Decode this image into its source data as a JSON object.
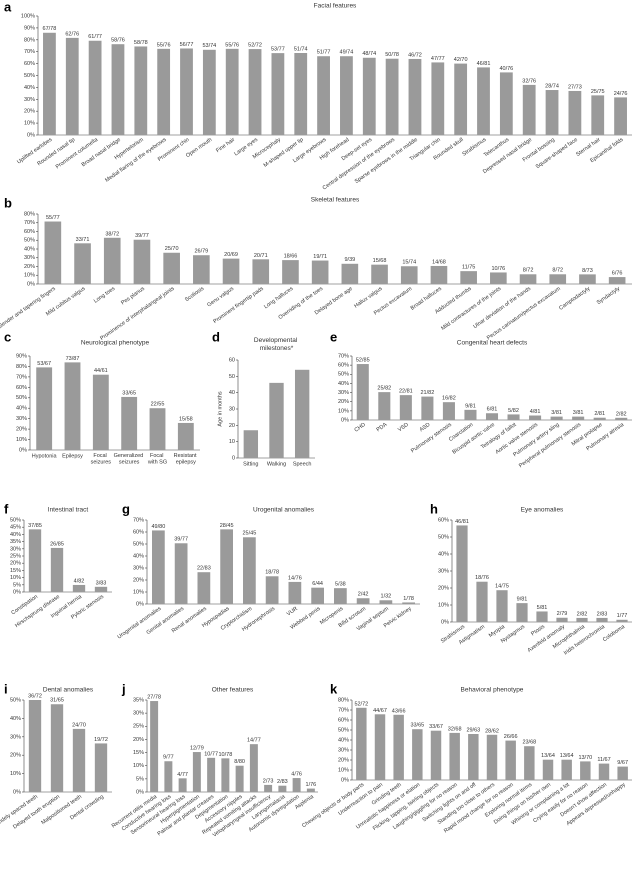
{
  "chart_data": [
    {
      "type": "bar",
      "panel": "a",
      "title": "Facial features",
      "color": "#9a9a9a",
      "categories": [
        "Uplifted earlobes",
        "Rounded nasal tip",
        "Prominent columella",
        "Broad nasal bridge",
        "Hypertelorism",
        "Medial flaring of the eyebrows",
        "Prominent chin",
        "Open mouth",
        "Fine hair",
        "Large eyes",
        "Microcephaly",
        "M-shaped upper lip",
        "Large eyebrows",
        "High forehead",
        "Deep-set eyes",
        "Central depression of the eyebrows",
        "Sparse eyebrows in the middle",
        "Triangular chin",
        "Rounded skull",
        "Strabismus",
        "Telecanthus",
        "Depressed nasal bridge",
        "Frontal bossing",
        "Square-shaped face",
        "Sternal hair",
        "Epicanthal folds"
      ],
      "values": [
        85.9,
        81.6,
        79.2,
        76.3,
        74.4,
        72.4,
        72.7,
        71.6,
        72.4,
        72.2,
        68.8,
        68.9,
        66.2,
        66.2,
        64.9,
        64.1,
        63.9,
        61.0,
        60.0,
        56.8,
        52.6,
        42.1,
        37.8,
        37.0,
        33.3,
        31.6
      ],
      "value_labels": [
        "67/78",
        "62/76",
        "61/77",
        "58/76",
        "58/78",
        "55/76",
        "56/77",
        "53/74",
        "55/76",
        "52/72",
        "53/77",
        "51/74",
        "51/77",
        "49/74",
        "48/74",
        "50/78",
        "46/72",
        "47/77",
        "42/70",
        "46/81",
        "40/76",
        "32/76",
        "28/74",
        "27/73",
        "25/75",
        "24/76"
      ],
      "ylim": [
        0,
        100
      ],
      "yticks": [
        {
          "value": 0,
          "label": "0%"
        },
        {
          "value": 10,
          "label": "10%"
        },
        {
          "value": 20,
          "label": "20%"
        },
        {
          "value": 30,
          "label": "30%"
        },
        {
          "value": 40,
          "label": "40%"
        },
        {
          "value": 50,
          "label": "50%"
        },
        {
          "value": 60,
          "label": "60%"
        },
        {
          "value": 70,
          "label": "70%"
        },
        {
          "value": 80,
          "label": "80%"
        },
        {
          "value": 90,
          "label": "90%"
        },
        {
          "value": 100,
          "label": "100%"
        }
      ]
    },
    {
      "type": "bar",
      "panel": "b",
      "title": "Skeletal features",
      "color": "#9a9a9a",
      "categories": [
        "Slender and tapering fingers",
        "Mild cubitus valgus",
        "Long toes",
        "Pes planus",
        "Prominence of interphalangeal joints",
        "Scoliosis",
        "Genu valgus",
        "Prominent fingertip pads",
        "Long halluces",
        "Overriding of the toes",
        "Delayed bone age",
        "Hallux valgus",
        "Pectus excavatum",
        "Broad halluces",
        "Adducted thumbs",
        "Mild contractures of the joints",
        "Ulnar deviation of the hands",
        "Pectus carinatum/pectus excavatum",
        "Camptodactyly",
        "Syndactyly"
      ],
      "values": [
        71.4,
        46.5,
        52.8,
        50.6,
        35.7,
        32.9,
        29.0,
        28.2,
        27.3,
        26.8,
        23.1,
        22.1,
        20.3,
        20.6,
        14.7,
        13.2,
        11.1,
        11.1,
        11.0,
        7.9
      ],
      "value_labels": [
        "55/77",
        "33/71",
        "38/72",
        "39/77",
        "25/70",
        "26/79",
        "20/69",
        "20/71",
        "18/66",
        "19/71",
        "9/39",
        "15/68",
        "15/74",
        "14/68",
        "11/75",
        "10/76",
        "8/72",
        "8/72",
        "8/73",
        "6/76"
      ],
      "ylim": [
        0,
        80
      ],
      "yticks": [
        {
          "value": 0,
          "label": "0%"
        },
        {
          "value": 10,
          "label": "10%"
        },
        {
          "value": 20,
          "label": "20%"
        },
        {
          "value": 30,
          "label": "30%"
        },
        {
          "value": 40,
          "label": "40%"
        },
        {
          "value": 50,
          "label": "50%"
        },
        {
          "value": 60,
          "label": "60%"
        },
        {
          "value": 70,
          "label": "70%"
        },
        {
          "value": 80,
          "label": "80%"
        }
      ]
    },
    {
      "type": "bar",
      "panel": "c",
      "title": "Neurological phenotype",
      "color": "#9a9a9a",
      "categories": [
        "Hypotonia",
        "Epilepsy",
        "Focal seizures",
        "Generalized seizures",
        "Focal with SG",
        "Resistant epilepsy"
      ],
      "values": [
        79.1,
        83.9,
        72.1,
        50.8,
        40.0,
        25.9
      ],
      "value_labels": [
        "53/67",
        "73/87",
        "44/61",
        "33/65",
        "22/55",
        "15/58"
      ],
      "ylim": [
        0,
        90
      ],
      "yticks": [
        {
          "value": 0,
          "label": "0%"
        },
        {
          "value": 10,
          "label": "10%"
        },
        {
          "value": 20,
          "label": "20%"
        },
        {
          "value": 30,
          "label": "30%"
        },
        {
          "value": 40,
          "label": "40%"
        },
        {
          "value": 50,
          "label": "50%"
        },
        {
          "value": 60,
          "label": "60%"
        },
        {
          "value": 70,
          "label": "70%"
        },
        {
          "value": 80,
          "label": "80%"
        },
        {
          "value": 90,
          "label": "90%"
        }
      ]
    },
    {
      "type": "bar",
      "panel": "d",
      "title": "Developmental milestones*",
      "ylabel": "Age in months",
      "color": "#9a9a9a",
      "categories": [
        "Sitting",
        "Walking",
        "Speech"
      ],
      "values": [
        17,
        46,
        54
      ],
      "ylim": [
        0,
        60
      ],
      "yticks": [
        0,
        10,
        20,
        30,
        40,
        50,
        60
      ]
    },
    {
      "type": "bar",
      "panel": "e",
      "title": "Congenital heart defects",
      "color": "#9a9a9a",
      "categories": [
        "CHD",
        "PDA",
        "VSD",
        "ASD",
        "Pulmonary stenosis",
        "Coarctation",
        "Bicuspid aortic valve",
        "Tetralogy of fallot",
        "Aortic valve stenosis",
        "Pulmonary artery sling",
        "Peripheral pulmonary stenosis",
        "Mitral prolapse",
        "Pulmonary atresia"
      ],
      "values": [
        61.2,
        30.5,
        27.2,
        25.6,
        19.5,
        11.1,
        7.4,
        6.1,
        4.9,
        3.7,
        3.7,
        2.5,
        2.4
      ],
      "value_labels": [
        "52/85",
        "25/82",
        "22/81",
        "21/82",
        "16/82",
        "9/81",
        "6/81",
        "5/82",
        "4/81",
        "3/81",
        "3/81",
        "2/81",
        "2/82"
      ],
      "ylim": [
        0,
        70
      ],
      "yticks": [
        {
          "value": 0,
          "label": "0%"
        },
        {
          "value": 10,
          "label": "10%"
        },
        {
          "value": 20,
          "label": "20%"
        },
        {
          "value": 30,
          "label": "30%"
        },
        {
          "value": 40,
          "label": "40%"
        },
        {
          "value": 50,
          "label": "50%"
        },
        {
          "value": 60,
          "label": "60%"
        },
        {
          "value": 70,
          "label": "70%"
        }
      ]
    },
    {
      "type": "bar",
      "panel": "f",
      "title": "Intestinal tract",
      "color": "#9a9a9a",
      "categories": [
        "Constipation",
        "Hirschsprung disease",
        "Inguinal hernia",
        "Pyloric stenosis"
      ],
      "values": [
        43.5,
        30.6,
        4.9,
        3.6
      ],
      "value_labels": [
        "37/85",
        "26/85",
        "4/82",
        "3/83"
      ],
      "ylim": [
        0,
        50
      ],
      "yticks": [
        {
          "value": 0,
          "label": "0%"
        },
        {
          "value": 5,
          "label": "5%"
        },
        {
          "value": 10,
          "label": "10%"
        },
        {
          "value": 15,
          "label": "15%"
        },
        {
          "value": 20,
          "label": "20%"
        },
        {
          "value": 25,
          "label": "25%"
        },
        {
          "value": 30,
          "label": "30%"
        },
        {
          "value": 35,
          "label": "35%"
        },
        {
          "value": 40,
          "label": "40%"
        },
        {
          "value": 45,
          "label": "45%"
        },
        {
          "value": 50,
          "label": "50%"
        }
      ]
    },
    {
      "type": "bar",
      "panel": "g",
      "title": "Urogenital anomalies",
      "color": "#9a9a9a",
      "categories": [
        "Urogenital anomalies",
        "Genital anomalies",
        "Renal anomalies",
        "Hypospadias",
        "Cryptorchidism",
        "Hydronephrosis",
        "VUR",
        "Webbed penis",
        "Micropenis",
        "Bifid scrotum",
        "Vaginal septum",
        "Pelvic kidney"
      ],
      "values": [
        61.3,
        50.6,
        26.5,
        62.2,
        55.6,
        23.1,
        18.4,
        13.6,
        13.2,
        4.8,
        3.1,
        1.3
      ],
      "value_labels": [
        "49/80",
        "39/77",
        "22/83",
        "28/45",
        "25/45",
        "18/78",
        "14/76",
        "6/44",
        "5/38",
        "2/42",
        "1/32",
        "1/78"
      ],
      "ylim": [
        0,
        70
      ],
      "yticks": [
        {
          "value": 0,
          "label": "0%"
        },
        {
          "value": 10,
          "label": "10%"
        },
        {
          "value": 20,
          "label": "20%"
        },
        {
          "value": 30,
          "label": "30%"
        },
        {
          "value": 40,
          "label": "40%"
        },
        {
          "value": 50,
          "label": "50%"
        },
        {
          "value": 60,
          "label": "60%"
        },
        {
          "value": 70,
          "label": "70%"
        }
      ]
    },
    {
      "type": "bar",
      "panel": "h",
      "title": "Eye anomalies",
      "color": "#9a9a9a",
      "categories": [
        "Strabismus",
        "Astigmatism",
        "Myopia",
        "Nystagmus",
        "Ptosis",
        "Axenfeld anomaly",
        "Microphthalmia",
        "Iridis heterochromia",
        "Coloboma"
      ],
      "values": [
        56.8,
        23.7,
        18.7,
        11.1,
        6.2,
        2.5,
        2.4,
        2.4,
        1.3
      ],
      "value_labels": [
        "46/81",
        "18/76",
        "14/75",
        "9/81",
        "5/81",
        "2/79",
        "2/82",
        "2/83",
        "1/77"
      ],
      "ylim": [
        0,
        60
      ],
      "yticks": [
        {
          "value": 0,
          "label": "0%"
        },
        {
          "value": 10,
          "label": "10%"
        },
        {
          "value": 20,
          "label": "20%"
        },
        {
          "value": 30,
          "label": "30%"
        },
        {
          "value": 40,
          "label": "40%"
        },
        {
          "value": 50,
          "label": "50%"
        },
        {
          "value": 60,
          "label": "60%"
        }
      ]
    },
    {
      "type": "bar",
      "panel": "i",
      "title": "Dental anomalies",
      "color": "#9a9a9a",
      "categories": [
        "Widely spaced teeth",
        "Delayed tooth eruption",
        "Malpositioned teeth",
        "Dental crowding"
      ],
      "values": [
        50.0,
        47.7,
        34.3,
        26.4
      ],
      "value_labels": [
        "36/72",
        "31/65",
        "24/70",
        "19/72"
      ],
      "ylim": [
        0,
        50
      ],
      "yticks": [
        {
          "value": 0,
          "label": "0%"
        },
        {
          "value": 10,
          "label": "10%"
        },
        {
          "value": 20,
          "label": "20%"
        },
        {
          "value": 30,
          "label": "30%"
        },
        {
          "value": 40,
          "label": "40%"
        },
        {
          "value": 50,
          "label": "50%"
        }
      ]
    },
    {
      "type": "bar",
      "panel": "j",
      "title": "Other features",
      "color": "#9a9a9a",
      "categories": [
        "Recurrent otitis media",
        "Conductive hearing loss",
        "Sensorineural hearing loss",
        "Hyperpigmentation",
        "Palmar and plantar creases",
        "Depigmentation",
        "Accessory nipples",
        "Repeated vomiting attacks",
        "Velopharyngeal insufficiency",
        "Laryngomalacia",
        "Autonomic dysregulation",
        "Asplenia"
      ],
      "values": [
        34.6,
        11.7,
        5.2,
        15.2,
        13.0,
        12.8,
        10.0,
        18.2,
        2.7,
        2.4,
        5.3,
        1.3
      ],
      "value_labels": [
        "27/78",
        "9/77",
        "4/77",
        "12/79",
        "10/77",
        "10/78",
        "8/80",
        "14/77",
        "2/73",
        "2/83",
        "4/76",
        "1/76"
      ],
      "ylim": [
        0,
        35
      ],
      "yticks": [
        {
          "value": 0,
          "label": "0%"
        },
        {
          "value": 5,
          "label": "5%"
        },
        {
          "value": 10,
          "label": "10%"
        },
        {
          "value": 15,
          "label": "15%"
        },
        {
          "value": 20,
          "label": "20%"
        },
        {
          "value": 25,
          "label": "25%"
        },
        {
          "value": 30,
          "label": "30%"
        },
        {
          "value": 35,
          "label": "35%"
        }
      ]
    },
    {
      "type": "bar",
      "panel": "k",
      "title": "Behavioral phenotype",
      "color": "#9a9a9a",
      "categories": [
        "Chewing objects or body parts",
        "Underreaction to pain",
        "Grinding teeth",
        "Unrealistic happiness or elation",
        "Flicking, tapping, twirling objects",
        "Laughing/giggling for no reason",
        "Switching lights on and off",
        "Standing too close to others",
        "Rapid mood change for no reason",
        "Exploring normal items",
        "Doing things on his/her own",
        "Whining or complaining a lot",
        "Crying easily for no reason",
        "Doesn't show affection",
        "Appears depressed/unhappy"
      ],
      "values": [
        72.2,
        65.7,
        65.2,
        50.8,
        49.3,
        47.1,
        46.0,
        45.2,
        39.4,
        33.8,
        20.3,
        20.3,
        18.6,
        16.4,
        13.4
      ],
      "value_labels": [
        "52/72",
        "44/67",
        "43/66",
        "33/65",
        "33/67",
        "32/68",
        "29/63",
        "28/62",
        "26/66",
        "23/68",
        "13/64",
        "13/64",
        "13/70",
        "11/67",
        "9/67"
      ],
      "ylim": [
        0,
        80
      ],
      "yticks": [
        {
          "value": 0,
          "label": "0%"
        },
        {
          "value": 10,
          "label": "10%"
        },
        {
          "value": 20,
          "label": "20%"
        },
        {
          "value": 30,
          "label": "30%"
        },
        {
          "value": 40,
          "label": "40%"
        },
        {
          "value": 50,
          "label": "50%"
        },
        {
          "value": 60,
          "label": "60%"
        },
        {
          "value": 70,
          "label": "70%"
        },
        {
          "value": 80,
          "label": "80%"
        }
      ]
    }
  ]
}
